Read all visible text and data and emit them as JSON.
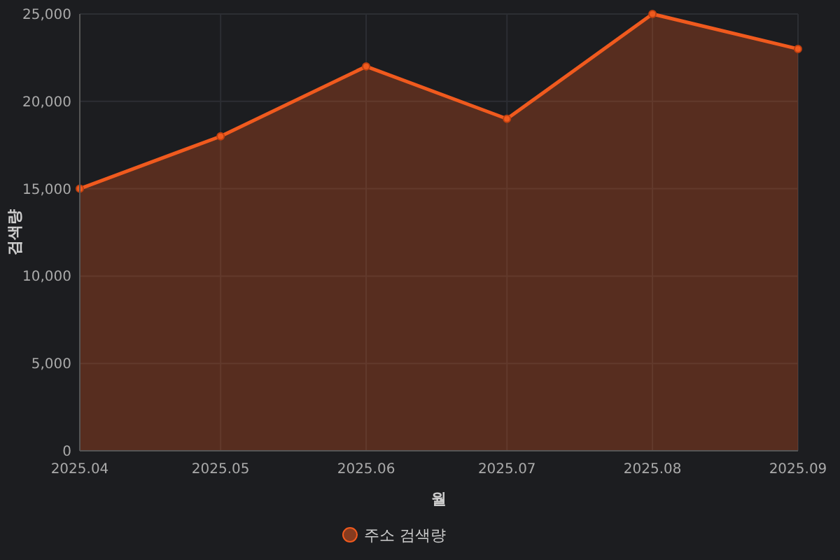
{
  "chart_data": {
    "type": "area",
    "xlabel": "월",
    "ylabel": "검색량",
    "x": [
      "2025-04",
      "2025-05",
      "2025-06",
      "2025-07",
      "2025-08",
      "2025-09"
    ],
    "xlim": [
      "2025-04",
      "2025-09"
    ],
    "xticks": [
      {
        "value": "2025-04",
        "label": "2025.04"
      },
      {
        "value": "2025-05",
        "label": "2025.05"
      },
      {
        "value": "2025-06",
        "label": "2025.06"
      },
      {
        "value": "2025-07",
        "label": "2025.07"
      },
      {
        "value": "2025-08",
        "label": "2025.08"
      },
      {
        "value": "2025-09",
        "label": "2025.09"
      }
    ],
    "ylim": [
      0,
      25000
    ],
    "yticks": [
      0,
      {
        "value": 5000,
        "label": "5,000"
      },
      {
        "value": 10000,
        "label": "10,000"
      },
      {
        "value": 15000,
        "label": "15,000"
      },
      {
        "value": 20000,
        "label": "20,000"
      },
      {
        "value": 25000,
        "label": "25,000"
      }
    ],
    "series": [
      {
        "name": "주소 검색량",
        "color": "#f05a1e",
        "values": [
          15000,
          18000,
          22000,
          19000,
          25000,
          23000
        ]
      }
    ],
    "grid": true,
    "legend": "bottom",
    "marker": "circle",
    "line_style": "solid"
  }
}
